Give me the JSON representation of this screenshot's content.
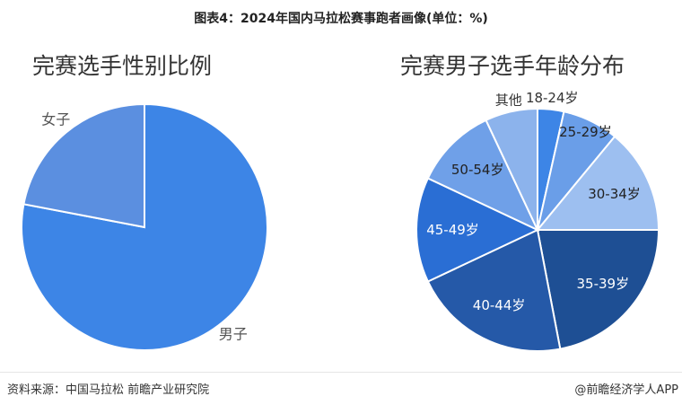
{
  "title": "图表4：2024年国内马拉松赛事跑者画像(单位：%)",
  "source": "资料来源：中国马拉松 前瞻产业研究院",
  "brand": "@前瞻经济学人APP",
  "chart_data": [
    {
      "type": "pie",
      "title": "完赛选手性别比例",
      "categories": [
        "男子",
        "女子"
      ],
      "values": [
        78,
        22
      ],
      "colors": [
        "#3d85e6",
        "#5b8fe0"
      ]
    },
    {
      "type": "pie",
      "title": "完赛男子选手年龄分布",
      "categories": [
        "18-24岁",
        "25-29岁",
        "30-34岁",
        "35-39岁",
        "40-44岁",
        "45-49岁",
        "50-54岁",
        "其他"
      ],
      "values": [
        3.5,
        7.5,
        14,
        22,
        21,
        14,
        11,
        7
      ],
      "colors": [
        "#3d85e6",
        "#6a9ee8",
        "#9dbff0",
        "#1e4f94",
        "#2559a8",
        "#2a6ed4",
        "#6fa0e8",
        "#8cb3ec"
      ]
    }
  ]
}
